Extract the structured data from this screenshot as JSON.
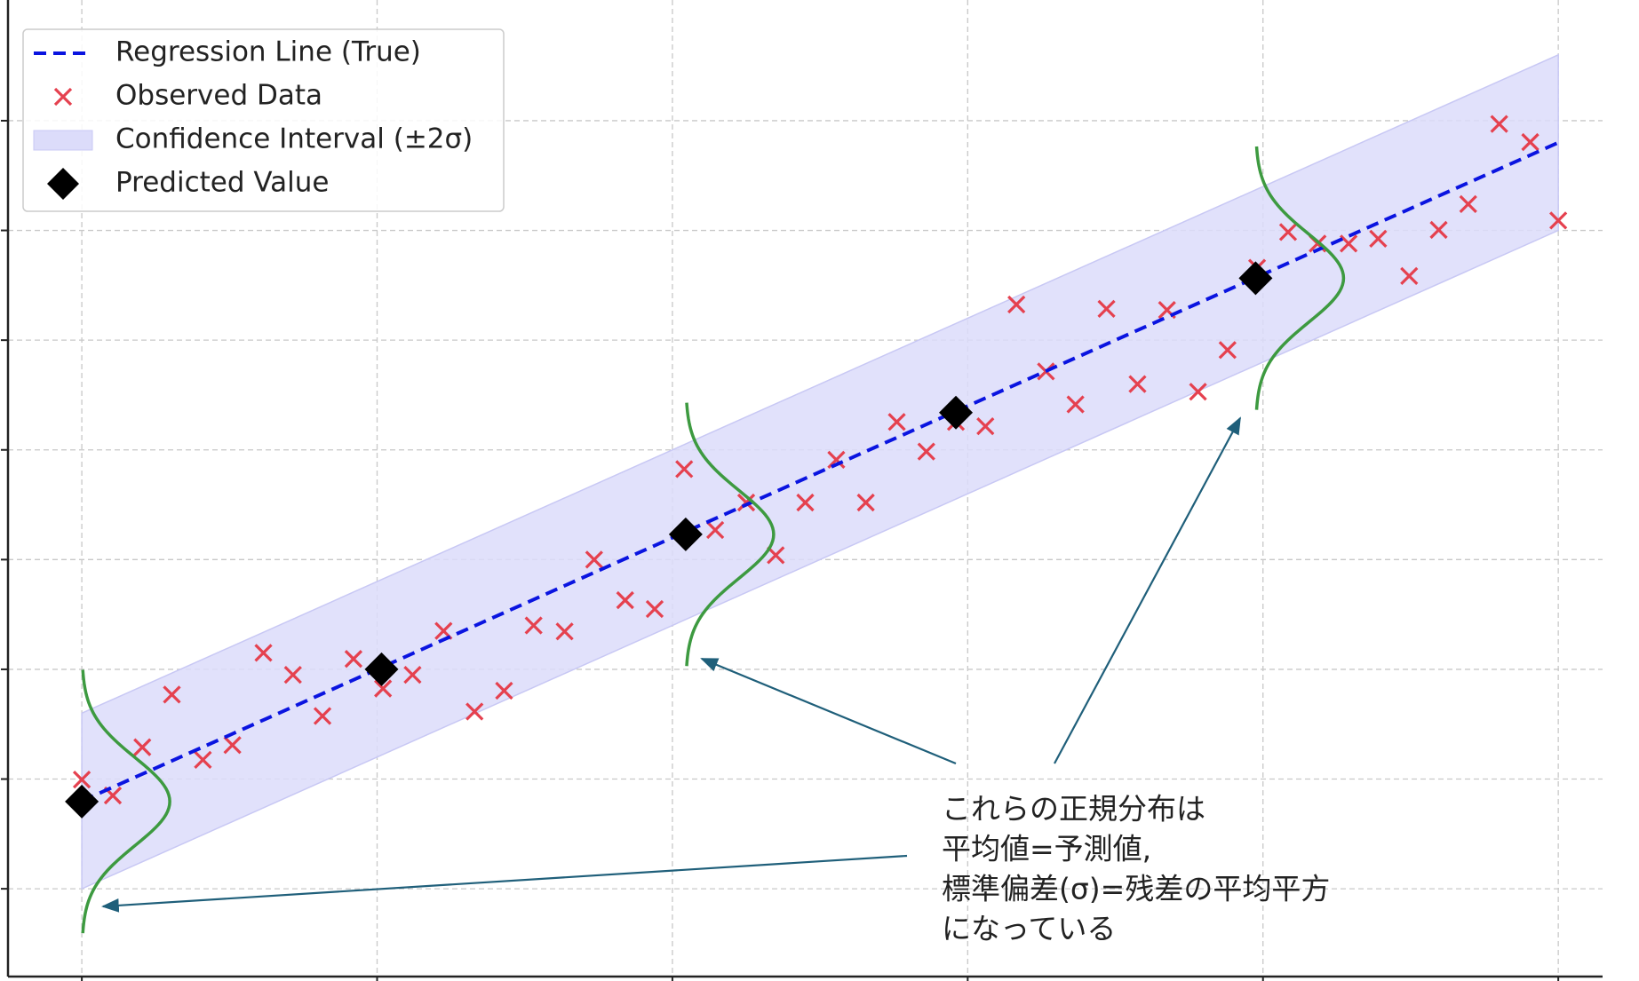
{
  "chart_data": {
    "type": "scatter",
    "xlim": [
      -0.5,
      10.3
    ],
    "ylim": [
      -1.6,
      16.2
    ],
    "xticks": [
      0,
      2,
      4,
      6,
      8,
      10
    ],
    "yticks": [
      0,
      2,
      4,
      6,
      8,
      10,
      12,
      14
    ],
    "grid": true,
    "legend": "upper left",
    "band": {
      "name": "Confidence Interval (±2σ)",
      "color": "#dcdcfa",
      "x": [
        0,
        10
      ],
      "lower": [
        0,
        12.0
      ],
      "upper": [
        3.2,
        15.2
      ]
    },
    "line": {
      "name": "Regression Line (True)",
      "color": "#0a14e0",
      "x": [
        0,
        10
      ],
      "y": [
        1.6,
        13.6
      ]
    },
    "observed": {
      "name": "Observed Data",
      "color": "#e5414f",
      "x": [
        0,
        0.21,
        0.41,
        0.61,
        0.82,
        1.02,
        1.23,
        1.43,
        1.63,
        1.84,
        2.04,
        2.24,
        2.45,
        2.66,
        2.86,
        3.06,
        3.27,
        3.47,
        3.68,
        3.88,
        4.08,
        4.29,
        4.5,
        4.7,
        4.9,
        5.11,
        5.31,
        5.52,
        5.72,
        5.92,
        6.12,
        6.33,
        6.53,
        6.73,
        6.94,
        7.15,
        7.35,
        7.56,
        7.76,
        7.96,
        8.17,
        8.37,
        8.58,
        8.78,
        8.99,
        9.19,
        9.39,
        9.6,
        9.81,
        10.0
      ],
      "y": [
        1.99,
        1.7,
        2.58,
        3.54,
        2.35,
        2.62,
        4.3,
        3.9,
        3.15,
        4.19,
        3.65,
        3.9,
        4.7,
        3.23,
        3.61,
        4.8,
        4.69,
        6.0,
        5.26,
        5.1,
        7.65,
        6.54,
        7.04,
        6.08,
        7.04,
        7.82,
        7.04,
        8.51,
        7.97,
        8.51,
        8.43,
        10.65,
        9.43,
        8.83,
        10.57,
        9.2,
        10.55,
        9.06,
        9.82,
        11.32,
        11.97,
        11.76,
        11.76,
        11.85,
        11.17,
        12.01,
        12.48,
        13.94,
        13.61,
        12.18
      ]
    },
    "predicted": {
      "name": "Predicted Value",
      "color": "#000000",
      "x": [
        0,
        2.03,
        4.09,
        5.92,
        7.95
      ],
      "y": [
        1.59,
        4.0,
        6.46,
        8.68,
        11.13
      ]
    },
    "distributions": {
      "color": "#3d9a40",
      "x": [
        0,
        4.09,
        7.95
      ],
      "mean": [
        1.59,
        6.46,
        11.13
      ]
    },
    "annotation": {
      "lines": [
        "これらの正規分布は",
        "平均値=予測値,",
        "標準偏差(σ)=残差の平均平方",
        "になっている"
      ]
    }
  }
}
